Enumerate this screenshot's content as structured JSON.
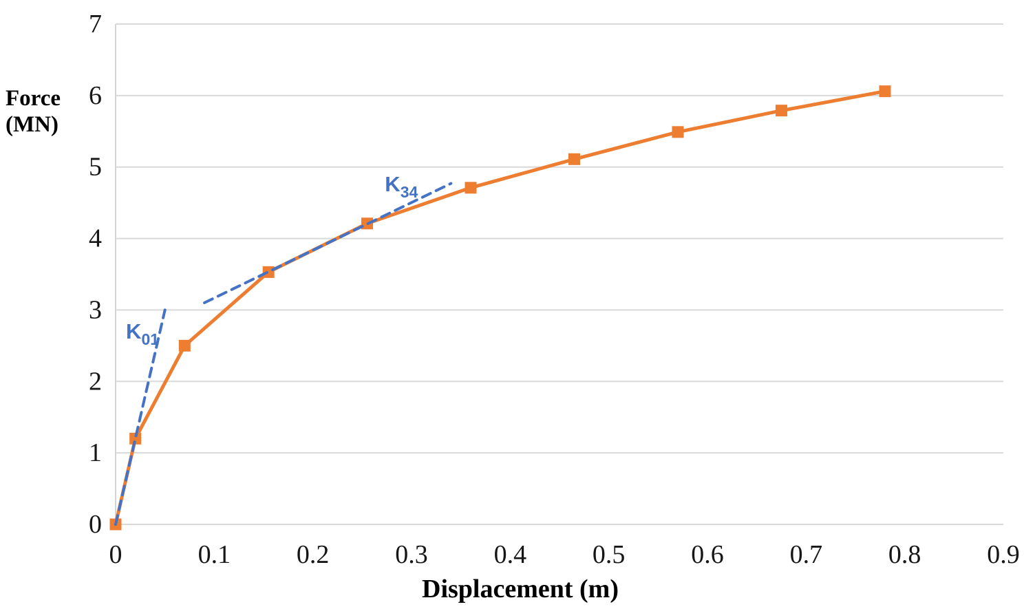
{
  "chart_data": {
    "type": "line",
    "title": "",
    "xlabel": "Displacement (m)",
    "ylabel": "Force (MN)",
    "xlim": [
      0,
      0.9
    ],
    "ylim": [
      0,
      7
    ],
    "grid": "horizontal-only",
    "legend": "none",
    "gridline_color": "#D9D9D9",
    "axis_line_color": "#D4D4D4",
    "tick_text_color": "#161616",
    "x_ticks": [
      {
        "v": 0,
        "label": "0"
      },
      {
        "v": 0.1,
        "label": "0.1"
      },
      {
        "v": 0.2,
        "label": "0.2"
      },
      {
        "v": 0.3,
        "label": "0.3"
      },
      {
        "v": 0.4,
        "label": "0.4"
      },
      {
        "v": 0.5,
        "label": "0.5"
      },
      {
        "v": 0.6,
        "label": "0.6"
      },
      {
        "v": 0.7,
        "label": "0.7"
      },
      {
        "v": 0.8,
        "label": "0.8"
      },
      {
        "v": 0.9,
        "label": "0.9"
      }
    ],
    "y_ticks": [
      {
        "v": 0,
        "label": "0"
      },
      {
        "v": 1,
        "label": "1"
      },
      {
        "v": 2,
        "label": "2"
      },
      {
        "v": 3,
        "label": "3"
      },
      {
        "v": 4,
        "label": "4"
      },
      {
        "v": 5,
        "label": "5"
      },
      {
        "v": 6,
        "label": "6"
      },
      {
        "v": 7,
        "label": "7"
      }
    ],
    "series": [
      {
        "name": "force-displacement-curve",
        "color": "#ED7D31",
        "line_style": "solid",
        "marker": "square",
        "points": [
          [
            0,
            0
          ],
          [
            0.02,
            1.2
          ],
          [
            0.07,
            2.5
          ],
          [
            0.155,
            3.53
          ],
          [
            0.255,
            4.21
          ],
          [
            0.36,
            4.71
          ],
          [
            0.465,
            5.11
          ],
          [
            0.57,
            5.49
          ],
          [
            0.675,
            5.79
          ],
          [
            0.78,
            6.06
          ]
        ]
      },
      {
        "name": "K01-initial-stiffness-line",
        "color": "#4472C4",
        "line_style": "dashed",
        "marker": "none",
        "points": [
          [
            0,
            0
          ],
          [
            0.05,
            3.0
          ]
        ]
      },
      {
        "name": "K34-secant-stiffness-line",
        "color": "#4472C4",
        "line_style": "dashed",
        "marker": "none",
        "points": [
          [
            0.09,
            3.1
          ],
          [
            0.34,
            4.77
          ]
        ]
      }
    ],
    "annotations": [
      {
        "main": "K",
        "sub": "01",
        "x": 0.0105,
        "y": 2.6,
        "color": "#4472C4"
      },
      {
        "main": "K",
        "sub": "34",
        "x": 0.273,
        "y": 4.66,
        "color": "#4472C4"
      }
    ]
  }
}
